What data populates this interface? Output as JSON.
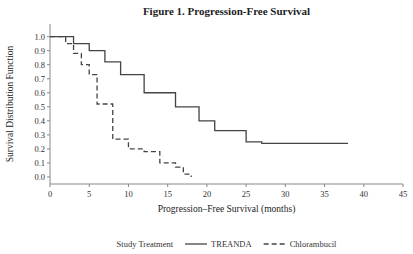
{
  "chart_data": {
    "type": "step",
    "title": "Figure 1.  Progression-Free Survival",
    "x_label": "Progression–Free Survival (months)",
    "y_label": "Survival Distribution Function",
    "xlim": [
      0,
      45
    ],
    "ylim": [
      -0.05,
      1.09
    ],
    "xticks": [
      0,
      5,
      10,
      15,
      20,
      25,
      30,
      35,
      40,
      45
    ],
    "yticks": [
      {
        "value": 0.0,
        "label": "0.0"
      },
      0.1,
      0.2,
      0.3,
      0.4,
      0.5,
      0.6,
      0.7,
      0.8,
      0.9,
      {
        "value": 1.0,
        "label": "1.0"
      }
    ],
    "grid": false,
    "legend": "bottom",
    "legend_title": "Study Treatment",
    "series": [
      {
        "name": "TREANDA",
        "color": "#444444",
        "line_style": "solid",
        "x": [
          0,
          3,
          3,
          5,
          5,
          7,
          7,
          9,
          9,
          12,
          12,
          16,
          16,
          19,
          19,
          21,
          21,
          25,
          25,
          27,
          27,
          38
        ],
        "values": [
          1.0,
          1.0,
          0.95,
          0.95,
          0.9,
          0.9,
          0.82,
          0.82,
          0.73,
          0.73,
          0.6,
          0.6,
          0.5,
          0.5,
          0.4,
          0.4,
          0.33,
          0.33,
          0.25,
          0.25,
          0.24,
          0.24
        ]
      },
      {
        "name": "Chlorambucil",
        "color": "#444444",
        "line_style": "dashed",
        "x": [
          0,
          2,
          2,
          3,
          3,
          4,
          4,
          5,
          5,
          6,
          6,
          8,
          8,
          10,
          10,
          12,
          12,
          14,
          14,
          16,
          16,
          17,
          17,
          18
        ],
        "values": [
          1.0,
          1.0,
          0.95,
          0.95,
          0.88,
          0.88,
          0.8,
          0.8,
          0.73,
          0.73,
          0.52,
          0.52,
          0.27,
          0.27,
          0.2,
          0.2,
          0.18,
          0.18,
          0.1,
          0.1,
          0.07,
          0.07,
          0.02,
          0.0
        ]
      }
    ]
  }
}
